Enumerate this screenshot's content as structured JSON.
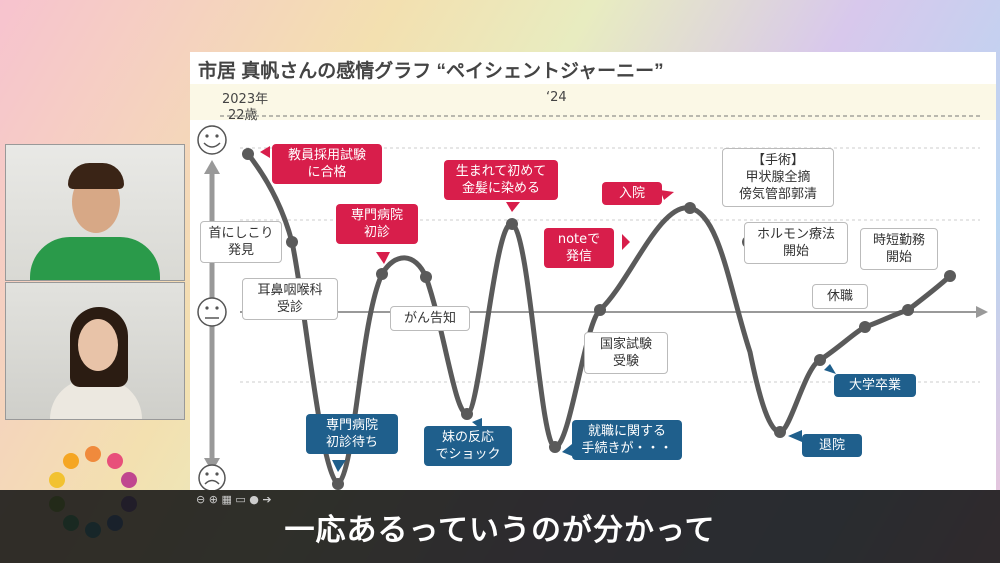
{
  "slide": {
    "title": "市居 真帆さんの感情グラフ “ペイシェントジャーニー”",
    "year_start": "2023年",
    "age_start": "22歳",
    "year_mid": "‘24"
  },
  "callouts": [
    {
      "id": "c1",
      "text": "教員採用試験\nに合格",
      "style": "red"
    },
    {
      "id": "c2",
      "text": "首にしこり\n発見",
      "style": "white"
    },
    {
      "id": "c3",
      "text": "耳鼻咽喉科\n受診",
      "style": "white"
    },
    {
      "id": "c4",
      "text": "専門病院\n初診待ち",
      "style": "blue"
    },
    {
      "id": "c5",
      "text": "専門病院\n初診",
      "style": "red"
    },
    {
      "id": "c6",
      "text": "がん告知",
      "style": "white"
    },
    {
      "id": "c7",
      "text": "生まれて初めて\n金髪に染める",
      "style": "red"
    },
    {
      "id": "c8",
      "text": "妹の反応\nでショック",
      "style": "blue"
    },
    {
      "id": "c9",
      "text": "noteで\n発信",
      "style": "red"
    },
    {
      "id": "c10",
      "text": "就職に関する\n手続きが・・・",
      "style": "blue"
    },
    {
      "id": "c11",
      "text": "国家試験\n受験",
      "style": "white"
    },
    {
      "id": "c12",
      "text": "入院",
      "style": "red"
    },
    {
      "id": "c13",
      "text": "【手術】\n甲状腺全摘\n傍気管部郭清",
      "style": "white"
    },
    {
      "id": "c14",
      "text": "ホルモン療法\n開始",
      "style": "white"
    },
    {
      "id": "c15",
      "text": "退院",
      "style": "blue"
    },
    {
      "id": "c16",
      "text": "休職",
      "style": "white"
    },
    {
      "id": "c17",
      "text": "時短勤務\n開始",
      "style": "white"
    },
    {
      "id": "c18",
      "text": "大学卒業",
      "style": "blue"
    }
  ],
  "subtitle": "一応あるっていうのが分かって",
  "toolbar_icons": [
    "zoom-out-icon",
    "zoom-in-icon",
    "grid-icon",
    "chat-icon",
    "more-icon",
    "next-icon"
  ],
  "colors": {
    "red": "#d81e4b",
    "blue": "#1f5f8c",
    "curve": "#555555"
  }
}
